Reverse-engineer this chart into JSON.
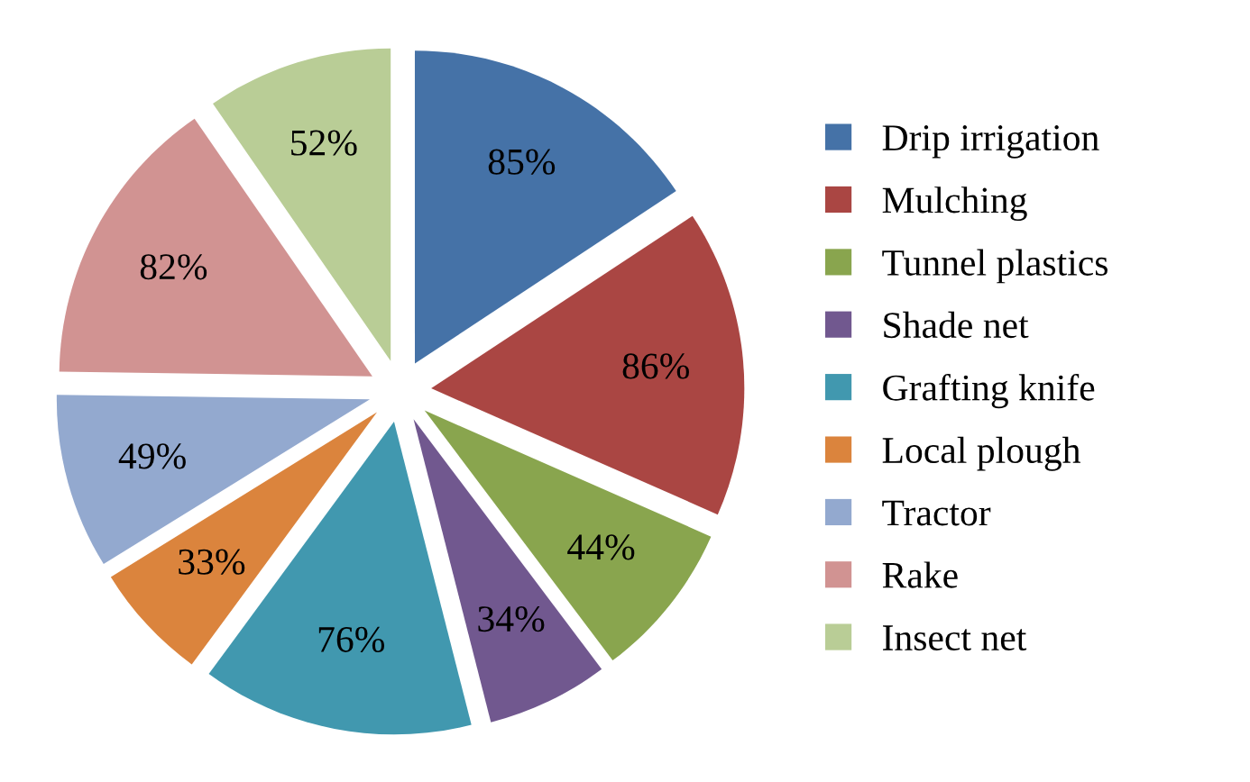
{
  "chart_data": {
    "type": "pie",
    "categories": [
      "Drip irrigation",
      "Mulching",
      "Tunnel plastics",
      "Shade net",
      "Grafting knife",
      "Local plough",
      "Tractor",
      "Rake",
      "Insect net"
    ],
    "values": [
      85,
      86,
      44,
      34,
      76,
      33,
      49,
      82,
      52
    ],
    "value_labels": [
      "85%",
      "86%",
      "44%",
      "34%",
      "76%",
      "33%",
      "49%",
      "82%",
      "52%"
    ],
    "colors": [
      "#4572a7",
      "#aa4643",
      "#89a54e",
      "#71588f",
      "#4198af",
      "#db843d",
      "#93a9cf",
      "#d19392",
      "#b9cd96"
    ],
    "legend": "right"
  }
}
